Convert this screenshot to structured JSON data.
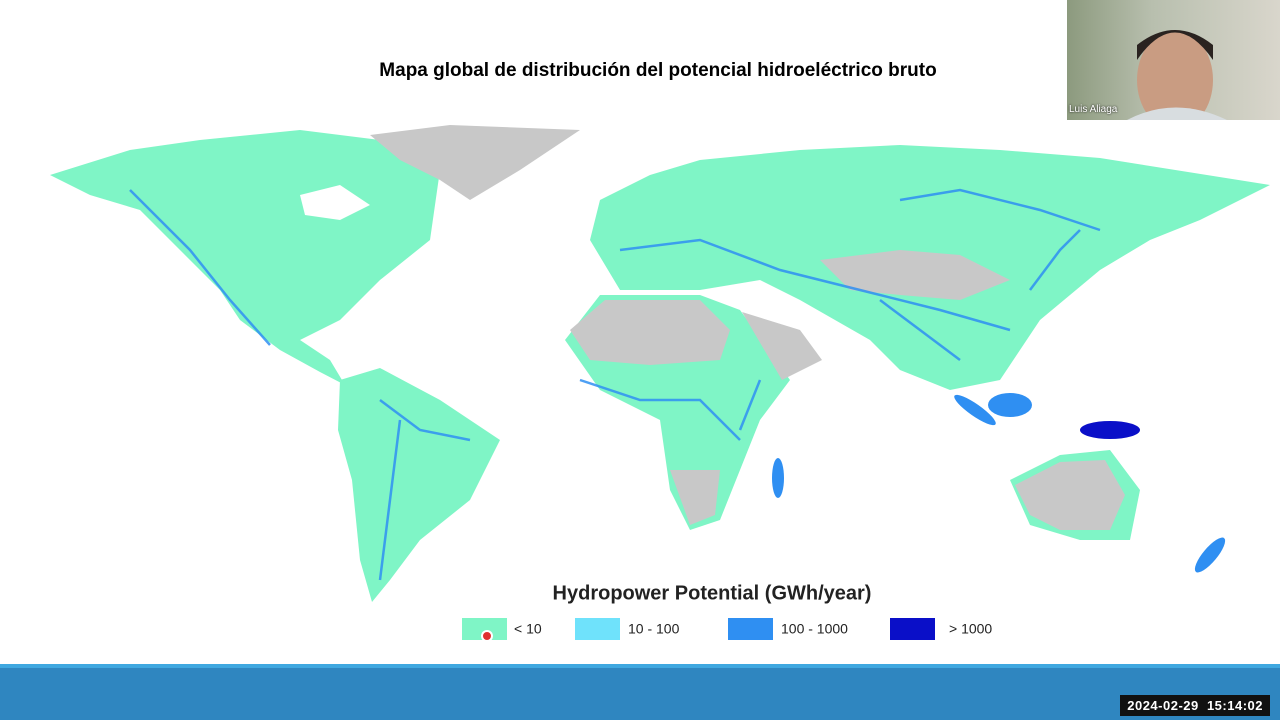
{
  "slide": {
    "title": "Mapa global de distribución del potencial hidroeléctrico bruto",
    "legend": {
      "title": "Hydropower Potential (GWh/year)",
      "items": [
        {
          "label": "< 10",
          "color": "#7ff5c6"
        },
        {
          "label": "10 - 100",
          "color": "#6fe2fb"
        },
        {
          "label": "100 - 1000",
          "color": "#2f8ff2"
        },
        {
          "label": "> 1000",
          "color": "#0a0fc8"
        }
      ]
    }
  },
  "video": {
    "participant": "Luis Aliaga"
  },
  "footer": {
    "timestamp": "2024-02-29  15:14:02"
  }
}
